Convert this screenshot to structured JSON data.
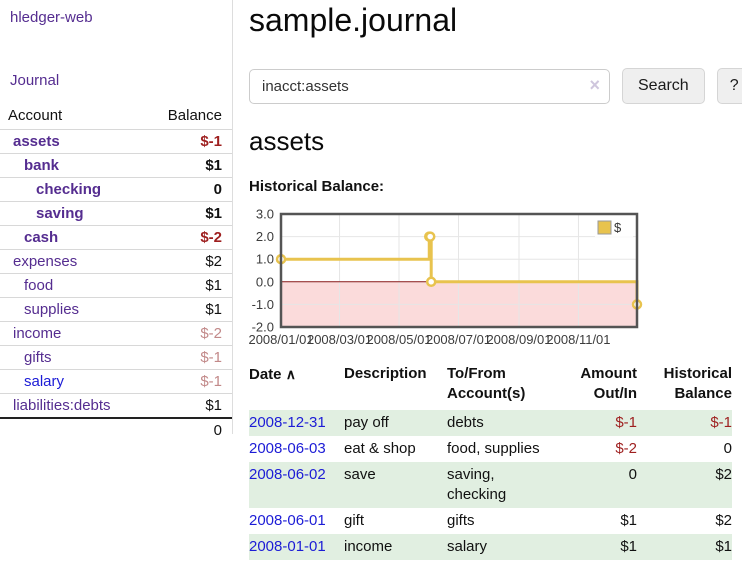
{
  "app": {
    "title": "hledger-web",
    "nav_journal": "Journal"
  },
  "sidebar": {
    "accounts_header": {
      "account": "Account",
      "balance": "Balance"
    },
    "accounts": [
      {
        "name": "assets",
        "balance": "$-1",
        "level": 1,
        "bold": true,
        "color": "purple"
      },
      {
        "name": "bank",
        "balance": "$1",
        "level": 2,
        "bold": true,
        "color": "purple"
      },
      {
        "name": "checking",
        "balance": "0",
        "level": 3,
        "bold": true,
        "color": "purple"
      },
      {
        "name": "saving",
        "balance": "$1",
        "level": 3,
        "bold": true,
        "color": "purple"
      },
      {
        "name": "cash",
        "balance": "$-2",
        "level": 2,
        "bold": true,
        "color": "purple"
      },
      {
        "name": "expenses",
        "balance": "$2",
        "level": 1,
        "bold": false,
        "color": "purple"
      },
      {
        "name": "food",
        "balance": "$1",
        "level": 2,
        "bold": false,
        "color": "purple"
      },
      {
        "name": "supplies",
        "balance": "$1",
        "level": 2,
        "bold": false,
        "color": "purple"
      },
      {
        "name": "income",
        "balance": "$-2",
        "level": 1,
        "bold": false,
        "color": "purple"
      },
      {
        "name": "gifts",
        "balance": "$-1",
        "level": 2,
        "bold": false,
        "color": "purple"
      },
      {
        "name": "salary",
        "balance": "$-1",
        "level": 2,
        "bold": false,
        "color": "blue"
      },
      {
        "name": "liabilities:debts",
        "balance": "$1",
        "level": 1,
        "bold": false,
        "color": "purple"
      }
    ],
    "total": "0"
  },
  "main": {
    "title": "sample.journal",
    "search": {
      "value": "inacct:assets",
      "clear_icon": "×",
      "button_label": "Search",
      "help_label": "?"
    },
    "account_heading": "assets",
    "chart_label": "Historical Balance:"
  },
  "chart_data": {
    "type": "line",
    "step": true,
    "title": "Historical Balance",
    "series": [
      {
        "name": "$",
        "color": "#e8c34e",
        "points": [
          [
            "2008-01-01",
            1
          ],
          [
            "2008-06-01",
            2
          ],
          [
            "2008-06-02",
            2
          ],
          [
            "2008-06-03",
            0
          ],
          [
            "2008-12-31",
            -1
          ]
        ]
      }
    ],
    "xrange": [
      "2008-01-01",
      "2008-12-31"
    ],
    "xticks": [
      "2008/01/01",
      "2008/03/01",
      "2008/05/01",
      "2008/07/01",
      "2008/09/01",
      "2008/11/01"
    ],
    "ylim": [
      -2,
      3
    ],
    "yticks": [
      3,
      2,
      1,
      0,
      -1,
      -2
    ],
    "ytick_labels": [
      "3.0",
      "2.0",
      "1.0",
      "0.0",
      "-1.0",
      "-2.0"
    ],
    "grid": true,
    "legend_position": "top-right",
    "gridline_color": "#e6e6e6",
    "border_color": "#545454",
    "zero_line_color": "#8b1b1b",
    "negative_region_color": "#fbdbdb"
  },
  "register_table": {
    "sort_icon": "∧",
    "headers": [
      "Date",
      "Description",
      "To/From\nAccount(s)",
      "Amount\nOut/In",
      "Historical\nBalance"
    ],
    "rows": [
      {
        "date": "2008-12-31",
        "description": "pay off",
        "accounts": "debts",
        "amount": "$-1",
        "balance": "$-1",
        "shade": true
      },
      {
        "date": "2008-06-03",
        "description": "eat & shop",
        "accounts": "food, supplies",
        "amount": "$-2",
        "balance": "0",
        "shade": false
      },
      {
        "date": "2008-06-02",
        "description": "save",
        "accounts": "saving,\nchecking",
        "amount": "0",
        "balance": "$2",
        "shade": true
      },
      {
        "date": "2008-06-01",
        "description": "gift",
        "accounts": "gifts",
        "amount": "$1",
        "balance": "$2",
        "shade": false
      },
      {
        "date": "2008-01-01",
        "description": "income",
        "accounts": "salary",
        "amount": "$1",
        "balance": "$1",
        "shade": true
      }
    ]
  }
}
